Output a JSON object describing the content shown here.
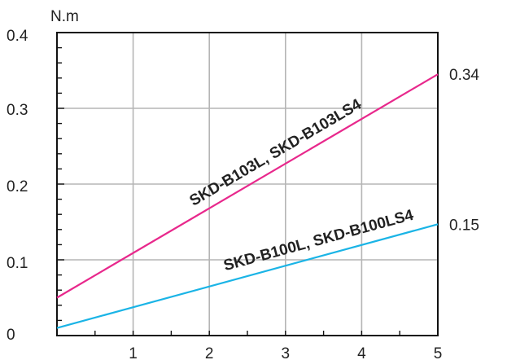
{
  "chart_data": {
    "type": "line",
    "ylabel": "N.m",
    "x_ticks": [
      "1",
      "2",
      "3",
      "4",
      "5"
    ],
    "y_ticks": [
      "0",
      "0.1",
      "0.2",
      "0.3",
      "0.4"
    ],
    "xlim": [
      0,
      5
    ],
    "ylim": [
      0,
      0.4
    ],
    "grid": true,
    "series": [
      {
        "name": "SKD-B103L, SKD-B103LS4",
        "color": "#e8288c",
        "x": [
          0,
          5
        ],
        "y": [
          0.05,
          0.345
        ],
        "end_label": "0.34"
      },
      {
        "name": "SKD-B100L, SKD-B100LS4",
        "color": "#1ab4e6",
        "x": [
          0,
          5
        ],
        "y": [
          0.01,
          0.147
        ],
        "end_label": "0.15"
      }
    ]
  }
}
